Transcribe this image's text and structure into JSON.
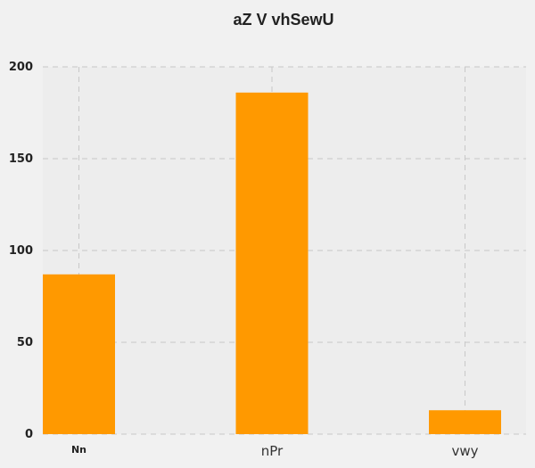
{
  "chart_data": {
    "type": "bar",
    "title": "aZ V vhSewU",
    "xlabel": "",
    "ylabel": "",
    "categories": [
      "Nn",
      "nPr",
      "vwy"
    ],
    "values": [
      87,
      186,
      13
    ],
    "ylim": [
      0,
      200
    ],
    "yticks": [
      0,
      50,
      100,
      150,
      200
    ],
    "grid": true,
    "bar_color": "#ff9900",
    "background_color": "#f1f1f1",
    "plot_background_color": "#ededed",
    "grid_color": "#c8c8c8"
  }
}
